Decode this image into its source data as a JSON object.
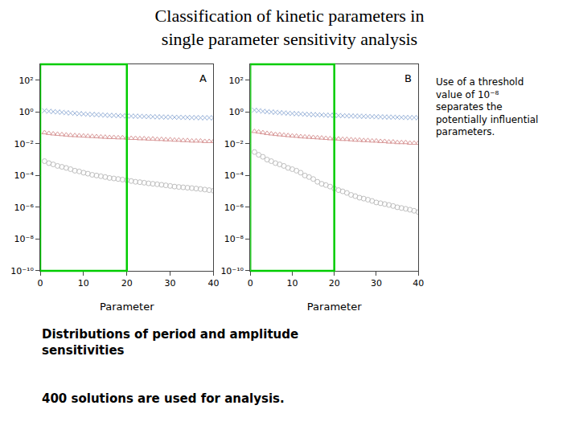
{
  "chart_data": [
    {
      "type": "scatter",
      "title": "Classification of kinetic parameters in\nsingle parameter sensitivity analysis",
      "label": "A",
      "annotations": [
        "Distributions of period and amplitude\nsensitivities",
        "400 solutions are used for analysis.",
        "Use of a threshold\nvalue of 10⁻⁸\nseparates the\npotentially influential\nparameters."
      ],
      "xlabel": "Parameter",
      "x": [
        1,
        2,
        3,
        4,
        5,
        6,
        7,
        8,
        9,
        10,
        11,
        12,
        13,
        14,
        15,
        16,
        17,
        18,
        19,
        20,
        21,
        22,
        23,
        24,
        25,
        26,
        27,
        28,
        29,
        30,
        31,
        32,
        33,
        34,
        35,
        36,
        37,
        38,
        39,
        40
      ],
      "series": [
        {
          "color": "#7799CC",
          "marker": "x",
          "values": [
            1.2,
            1.1,
            1.05,
            1.0,
            0.95,
            0.9,
            0.85,
            0.82,
            0.78,
            0.75,
            0.72,
            0.7,
            0.68,
            0.65,
            0.63,
            0.61,
            0.6,
            0.58,
            0.57,
            0.56,
            0.55,
            0.54,
            0.53,
            0.52,
            0.51,
            0.5,
            0.49,
            0.48,
            0.47,
            0.47,
            0.46,
            0.46,
            0.45,
            0.45,
            0.44,
            0.44,
            0.43,
            0.43,
            0.43,
            0.42
          ]
        },
        {
          "color": "#CC7777",
          "marker": "triangle",
          "values": [
            0.05,
            0.045,
            0.042,
            0.04,
            0.038,
            0.036,
            0.034,
            0.033,
            0.032,
            0.031,
            0.03,
            0.029,
            0.028,
            0.027,
            0.026,
            0.025,
            0.025,
            0.024,
            0.024,
            0.023,
            0.022,
            0.022,
            0.021,
            0.021,
            0.02,
            0.02,
            0.019,
            0.019,
            0.018,
            0.018,
            0.017,
            0.017,
            0.016,
            0.016,
            0.015,
            0.015,
            0.015,
            0.014,
            0.014,
            0.014
          ]
        },
        {
          "color": "#AAAAAA",
          "marker": "circle",
          "values": [
            0.0008,
            0.0006,
            0.0005,
            0.0004,
            0.00035,
            0.0003,
            0.00025,
            0.0002,
            0.00018,
            0.00015,
            0.00013,
            0.00011,
            0.0001,
            9e-05,
            8e-05,
            7e-05,
            6.5e-05,
            6e-05,
            5.5e-05,
            5e-05,
            4.5e-05,
            4e-05,
            3.8e-05,
            3.5e-05,
            3.2e-05,
            3e-05,
            2.8e-05,
            2.6e-05,
            2.4e-05,
            2.2e-05,
            2e-05,
            1.9e-05,
            1.8e-05,
            1.7e-05,
            1.6e-05,
            1.5e-05,
            1.4e-05,
            1.3e-05,
            1.2e-05,
            1.1e-05
          ]
        }
      ],
      "xlim": [
        0,
        40
      ],
      "xticks": [
        0,
        10,
        20,
        30,
        40
      ],
      "ylim": [
        1e-10,
        1000
      ],
      "yticks": [
        {
          "value": 1e-10,
          "label": "10⁻¹⁰"
        },
        {
          "value": 1e-08,
          "label": "10⁻⁸"
        },
        {
          "value": 1e-06,
          "label": "10⁻⁶"
        },
        {
          "value": 0.0001,
          "label": "10⁻⁴"
        },
        {
          "value": 0.01,
          "label": "10⁻²"
        },
        {
          "value": 1,
          "label": "10⁰"
        },
        {
          "value": 100,
          "label": "10²"
        }
      ],
      "log": "y",
      "grid": false,
      "highlight": {
        "x": [
          0,
          20
        ],
        "color": "#00CC00"
      }
    },
    {
      "type": "scatter",
      "label": "B",
      "xlabel": "Parameter",
      "x": [
        1,
        2,
        3,
        4,
        5,
        6,
        7,
        8,
        9,
        10,
        11,
        12,
        13,
        14,
        15,
        16,
        17,
        18,
        19,
        20,
        21,
        22,
        23,
        24,
        25,
        26,
        27,
        28,
        29,
        30,
        31,
        32,
        33,
        34,
        35,
        36,
        37,
        38,
        39,
        40
      ],
      "series": [
        {
          "color": "#7799CC",
          "marker": "x",
          "values": [
            1.3,
            1.2,
            1.1,
            1.05,
            1.0,
            0.95,
            0.9,
            0.87,
            0.83,
            0.8,
            0.77,
            0.75,
            0.72,
            0.7,
            0.68,
            0.66,
            0.65,
            0.63,
            0.62,
            0.61,
            0.6,
            0.58,
            0.57,
            0.56,
            0.55,
            0.54,
            0.53,
            0.52,
            0.51,
            0.5,
            0.49,
            0.48,
            0.47,
            0.47,
            0.46,
            0.45,
            0.45,
            0.44,
            0.44,
            0.43
          ]
        },
        {
          "color": "#CC7777",
          "marker": "triangle",
          "values": [
            0.06,
            0.055,
            0.05,
            0.045,
            0.042,
            0.039,
            0.037,
            0.035,
            0.033,
            0.031,
            0.03,
            0.028,
            0.027,
            0.026,
            0.025,
            0.024,
            0.023,
            0.022,
            0.021,
            0.021,
            0.02,
            0.019,
            0.019,
            0.018,
            0.017,
            0.017,
            0.016,
            0.016,
            0.015,
            0.015,
            0.014,
            0.014,
            0.013,
            0.013,
            0.012,
            0.012,
            0.012,
            0.011,
            0.011,
            0.011
          ]
        },
        {
          "color": "#AAAAAA",
          "marker": "circle",
          "values": [
            0.003,
            0.002,
            0.0015,
            0.001,
            0.0008,
            0.0006,
            0.0005,
            0.0004,
            0.0003,
            0.00025,
            0.0002,
            0.00015,
            0.0001,
            8e-05,
            6e-05,
            4e-05,
            3e-05,
            2.5e-05,
            2e-05,
            1.5e-05,
            1.2e-05,
            1e-05,
            8e-06,
            6e-06,
            5e-06,
            4e-06,
            3.5e-06,
            3e-06,
            2.5e-06,
            2e-06,
            1.8e-06,
            1.6e-06,
            1.4e-06,
            1.2e-06,
            1e-06,
            9e-07,
            8e-07,
            7e-07,
            6e-07,
            5e-07
          ]
        }
      ],
      "xlim": [
        0,
        40
      ],
      "xticks": [
        0,
        10,
        20,
        30,
        40
      ],
      "ylim": [
        1e-10,
        1000
      ],
      "yticks": [
        {
          "value": 1e-10,
          "label": "10⁻¹⁰"
        },
        {
          "value": 1e-08,
          "label": "10⁻⁸"
        },
        {
          "value": 1e-06,
          "label": "10⁻⁶"
        },
        {
          "value": 0.0001,
          "label": "10⁻⁴"
        },
        {
          "value": 0.01,
          "label": "10⁻²"
        },
        {
          "value": 1,
          "label": "10⁰"
        },
        {
          "value": 100,
          "label": "10²"
        }
      ],
      "log": "y",
      "grid": false,
      "highlight": {
        "x": [
          0,
          20
        ],
        "color": "#00CC00"
      }
    }
  ]
}
